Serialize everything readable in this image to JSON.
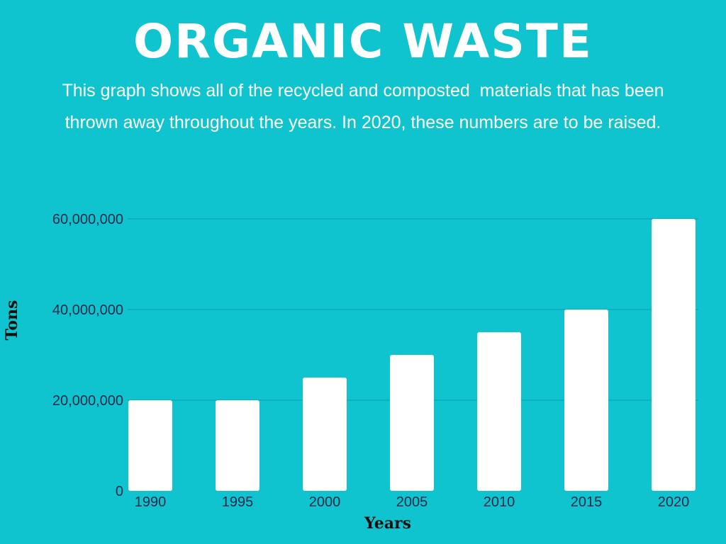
{
  "header": {
    "title": "ORGANIC WASTE",
    "subtitle_line1": "This graph shows all of the recycled and composted  materials that has been",
    "subtitle_line2": "thrown away throughout the years. In 2020, these numbers are to be raised."
  },
  "colors": {
    "background": "#0fc4cf",
    "bar": "#ffffff",
    "grid": "#0a9bb0",
    "tick_text": "#1b2a4a"
  },
  "chart_data": {
    "type": "bar",
    "categories": [
      "1990",
      "1995",
      "2000",
      "2005",
      "2010",
      "2015",
      "2020"
    ],
    "values": [
      20000000,
      20000000,
      25000000,
      30000000,
      35000000,
      40000000,
      60000000
    ],
    "xlabel": "Years",
    "ylabel": "Tons",
    "ylim": [
      0,
      60000000
    ],
    "yticks": [
      0,
      20000000,
      40000000,
      60000000
    ],
    "ytick_labels": [
      "0",
      "20,000,000",
      "40,000,000",
      "60,000,000"
    ],
    "grid": true,
    "legend": "none"
  }
}
